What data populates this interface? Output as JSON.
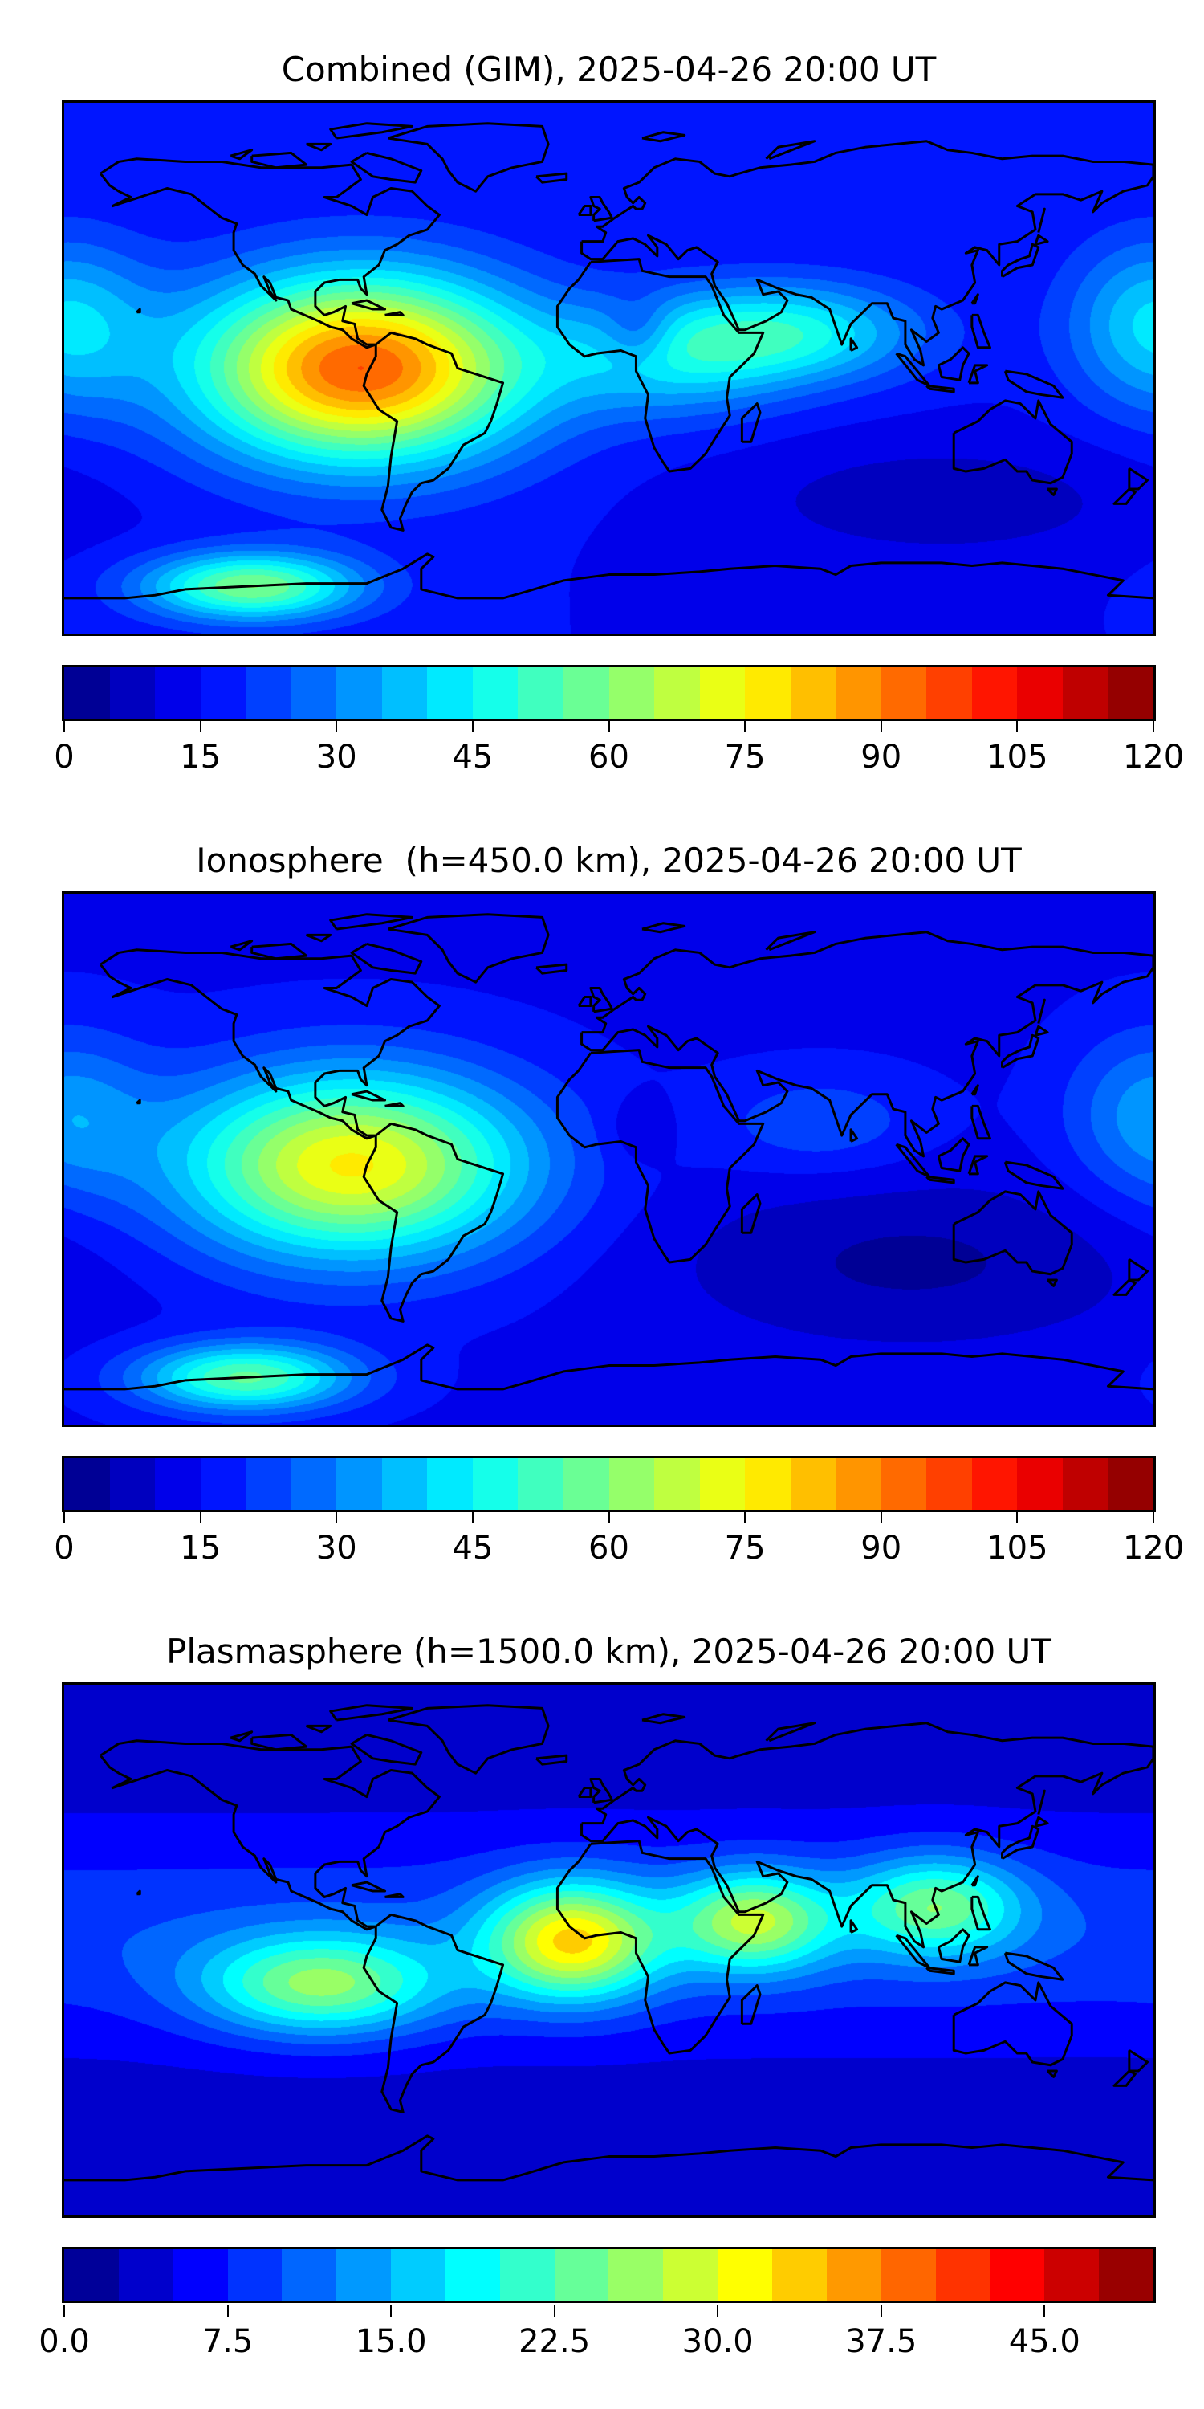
{
  "panels": [
    {
      "title": "Combined (GIM), 2025-04-26 20:00 UT"
    },
    {
      "title": "Ionosphere  (h=450.0 km), 2025-04-26 20:00 UT"
    },
    {
      "title": "Plasmasphere (h=1500.0 km), 2025-04-26 20:00 UT"
    }
  ],
  "chart_data": [
    {
      "type": "heatmap",
      "title": "Combined (GIM), 2025-04-26 20:00 UT",
      "projection": "plate carree",
      "lon_range": [
        -180,
        180
      ],
      "lat_range": [
        -90,
        90
      ],
      "colormap": "jet",
      "vmin": 0,
      "vmax": 120,
      "level_step": 5,
      "colorbar_ticks": [
        "0",
        "15",
        "30",
        "45",
        "60",
        "75",
        "90",
        "105",
        "120"
      ],
      "field_model": {
        "base": 15,
        "features": [
          {
            "lon": -82,
            "lat": 0,
            "amp": 80,
            "sig_lon": 38,
            "sig_lat": 22
          },
          {
            "lon": -118,
            "lat": -74,
            "amp": 45,
            "sig_lon": 25,
            "sig_lat": 8
          },
          {
            "lon": 60,
            "lat": 12,
            "amp": 30,
            "sig_lon": 30,
            "sig_lat": 12
          },
          {
            "lon": 20,
            "lat": 3,
            "amp": 22,
            "sig_lon": 28,
            "sig_lat": 14
          },
          {
            "lon": 10,
            "lat": 12,
            "amp": -12,
            "sig_lon": 8,
            "sig_lat": 8
          },
          {
            "lon": 180,
            "lat": 15,
            "amp": 25,
            "sig_lon": 20,
            "sig_lat": 20
          },
          {
            "lon": 110,
            "lat": -45,
            "amp": -8,
            "sig_lon": 50,
            "sig_lat": 15
          }
        ]
      }
    },
    {
      "type": "heatmap",
      "title": "Ionosphere  (h=450.0 km), 2025-04-26 20:00 UT",
      "projection": "plate carree",
      "lon_range": [
        -180,
        180
      ],
      "lat_range": [
        -90,
        90
      ],
      "colormap": "jet",
      "vmin": 0,
      "vmax": 120,
      "level_step": 5,
      "colorbar_ticks": [
        "0",
        "15",
        "30",
        "45",
        "60",
        "75",
        "90",
        "105",
        "120"
      ],
      "field_model": {
        "base": 14,
        "features": [
          {
            "lon": -85,
            "lat": -2,
            "amp": 62,
            "sig_lon": 40,
            "sig_lat": 22
          },
          {
            "lon": -120,
            "lat": -74,
            "amp": 42,
            "sig_lon": 25,
            "sig_lat": 8
          },
          {
            "lon": 70,
            "lat": 12,
            "amp": 10,
            "sig_lon": 25,
            "sig_lat": 12
          },
          {
            "lon": 180,
            "lat": 15,
            "amp": 18,
            "sig_lon": 20,
            "sig_lat": 20
          },
          {
            "lon": 100,
            "lat": -35,
            "amp": -10,
            "sig_lon": 55,
            "sig_lat": 20
          },
          {
            "lon": 10,
            "lat": 10,
            "amp": -6,
            "sig_lon": 8,
            "sig_lat": 8
          }
        ]
      }
    },
    {
      "type": "heatmap",
      "title": "Plasmasphere (h=1500.0 km), 2025-04-26 20:00 UT",
      "projection": "plate carree",
      "lon_range": [
        -180,
        180
      ],
      "lat_range": [
        -90,
        90
      ],
      "colormap": "jet",
      "vmin": 0,
      "vmax": 50,
      "level_step": 2.5,
      "colorbar_ticks": [
        "0.0",
        "7.5",
        "15.0",
        "22.5",
        "30.0",
        "37.5",
        "45.0"
      ],
      "field_model": {
        "base": 3.5,
        "features": [
          {
            "lon": 0,
            "lat": 5,
            "amp": 6,
            "sig_lon": 1000,
            "sig_lat": 25
          },
          {
            "lon": -12,
            "lat": 3,
            "amp": 24,
            "sig_lon": 20,
            "sig_lat": 14
          },
          {
            "lon": -95,
            "lat": -12,
            "amp": 18,
            "sig_lon": 28,
            "sig_lat": 12
          },
          {
            "lon": 48,
            "lat": 10,
            "amp": 19,
            "sig_lon": 18,
            "sig_lat": 12
          },
          {
            "lon": 108,
            "lat": 15,
            "amp": 16,
            "sig_lon": 20,
            "sig_lat": 12
          }
        ]
      }
    }
  ]
}
